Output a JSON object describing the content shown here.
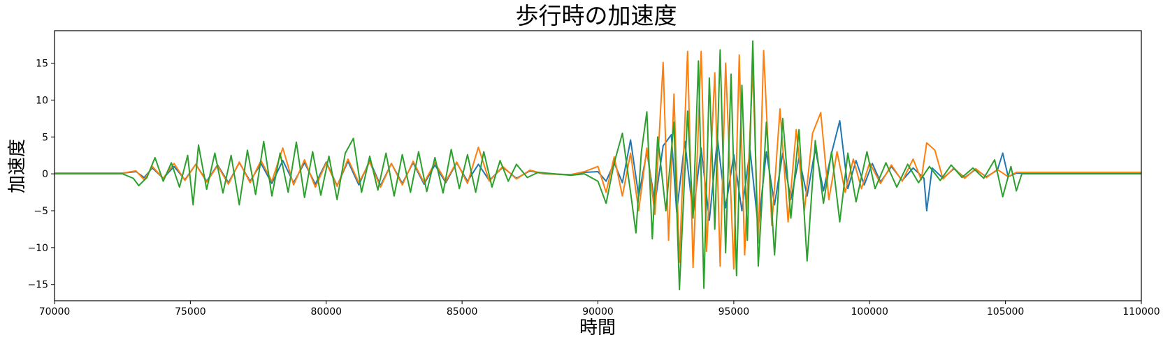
{
  "chart_data": {
    "type": "line",
    "title": "歩行時の加速度",
    "xlabel": "時間",
    "ylabel": "加速度",
    "xlim": [
      70000,
      110000
    ],
    "ylim": [
      -17.2,
      19.4
    ],
    "xticks": [
      70000,
      75000,
      80000,
      85000,
      90000,
      95000,
      100000,
      105000,
      110000
    ],
    "yticks": [
      -15,
      -10,
      -5,
      0,
      5,
      10,
      15
    ],
    "ytick_labels": [
      "−15",
      "−10",
      "−5",
      "0",
      "5",
      "10",
      "15"
    ],
    "grid": false,
    "legend": "none",
    "series": [
      {
        "color": "#1f77b4",
        "points": [
          [
            70000,
            0.1
          ],
          [
            72500,
            0.1
          ],
          [
            73000,
            0.3
          ],
          [
            73300,
            -0.5
          ],
          [
            73600,
            0.8
          ],
          [
            74000,
            -0.6
          ],
          [
            74400,
            1.0
          ],
          [
            74800,
            -0.8
          ],
          [
            75200,
            1.3
          ],
          [
            75600,
            -1.0
          ],
          [
            76000,
            1.2
          ],
          [
            76400,
            -1.2
          ],
          [
            76800,
            1.5
          ],
          [
            77200,
            -1.0
          ],
          [
            77600,
            1.4
          ],
          [
            78000,
            -1.3
          ],
          [
            78400,
            1.8
          ],
          [
            78800,
            -1.2
          ],
          [
            79200,
            1.5
          ],
          [
            79600,
            -1.4
          ],
          [
            80000,
            1.6
          ],
          [
            80400,
            -1.6
          ],
          [
            80800,
            1.7
          ],
          [
            81200,
            -1.5
          ],
          [
            81600,
            1.8
          ],
          [
            82000,
            -1.6
          ],
          [
            82400,
            1.4
          ],
          [
            82800,
            -1.3
          ],
          [
            83200,
            1.5
          ],
          [
            83600,
            -1.4
          ],
          [
            84000,
            1.2
          ],
          [
            84400,
            -1.2
          ],
          [
            84800,
            1.5
          ],
          [
            85200,
            -1.0
          ],
          [
            85600,
            1.3
          ],
          [
            86000,
            -0.9
          ],
          [
            86500,
            0.9
          ],
          [
            87000,
            -0.6
          ],
          [
            87500,
            0.4
          ],
          [
            88000,
            0.0
          ],
          [
            89000,
            -0.1
          ],
          [
            89500,
            0.2
          ],
          [
            90000,
            0.3
          ],
          [
            90300,
            -1.0
          ],
          [
            90600,
            1.5
          ],
          [
            90900,
            -1.2
          ],
          [
            91200,
            4.6
          ],
          [
            91500,
            -3.0
          ],
          [
            91800,
            3.0
          ],
          [
            92100,
            -4.0
          ],
          [
            92400,
            3.8
          ],
          [
            92700,
            5.3
          ],
          [
            92900,
            -5.2
          ],
          [
            93200,
            4.4
          ],
          [
            93500,
            -5.5
          ],
          [
            93800,
            3.5
          ],
          [
            94100,
            -6.3
          ],
          [
            94400,
            4.8
          ],
          [
            94700,
            -4.6
          ],
          [
            95000,
            2.6
          ],
          [
            95300,
            -5.0
          ],
          [
            95600,
            3.2
          ],
          [
            95900,
            -7.3
          ],
          [
            96200,
            3.0
          ],
          [
            96500,
            -4.2
          ],
          [
            96800,
            2.8
          ],
          [
            97100,
            -3.5
          ],
          [
            97400,
            2.2
          ],
          [
            97700,
            -3.0
          ],
          [
            98000,
            3.4
          ],
          [
            98300,
            -2.3
          ],
          [
            98600,
            2.8
          ],
          [
            98900,
            7.2
          ],
          [
            99200,
            -2.0
          ],
          [
            99500,
            1.8
          ],
          [
            99800,
            -1.5
          ],
          [
            100100,
            1.4
          ],
          [
            100400,
            -1.1
          ],
          [
            100800,
            1.0
          ],
          [
            101200,
            -0.9
          ],
          [
            101600,
            0.8
          ],
          [
            102000,
            -0.6
          ],
          [
            102100,
            -5.0
          ],
          [
            102300,
            0.8
          ],
          [
            102700,
            -0.6
          ],
          [
            103100,
            0.7
          ],
          [
            103500,
            -0.5
          ],
          [
            103900,
            0.6
          ],
          [
            104300,
            -0.4
          ],
          [
            104700,
            0.5
          ],
          [
            104900,
            2.8
          ],
          [
            105100,
            -0.4
          ],
          [
            105400,
            0.1
          ],
          [
            110000,
            0.1
          ]
        ]
      },
      {
        "color": "#ff7f0e",
        "points": [
          [
            70000,
            0.1
          ],
          [
            72500,
            0.1
          ],
          [
            73000,
            0.4
          ],
          [
            73300,
            -0.8
          ],
          [
            73600,
            1.0
          ],
          [
            74000,
            -0.6
          ],
          [
            74400,
            1.4
          ],
          [
            74800,
            -0.9
          ],
          [
            75200,
            1.3
          ],
          [
            75600,
            -1.1
          ],
          [
            76000,
            1.1
          ],
          [
            76400,
            -1.4
          ],
          [
            76800,
            1.6
          ],
          [
            77200,
            -1.2
          ],
          [
            77600,
            1.8
          ],
          [
            78000,
            -1.0
          ],
          [
            78400,
            3.5
          ],
          [
            78800,
            -1.5
          ],
          [
            79200,
            1.9
          ],
          [
            79600,
            -1.8
          ],
          [
            80000,
            1.5
          ],
          [
            80400,
            -1.7
          ],
          [
            80800,
            2.0
          ],
          [
            81200,
            -1.2
          ],
          [
            81600,
            1.6
          ],
          [
            82000,
            -1.8
          ],
          [
            82400,
            1.4
          ],
          [
            82800,
            -1.5
          ],
          [
            83200,
            1.7
          ],
          [
            83600,
            -1.2
          ],
          [
            84000,
            1.5
          ],
          [
            84400,
            -1.0
          ],
          [
            84800,
            1.6
          ],
          [
            85200,
            -1.3
          ],
          [
            85600,
            3.6
          ],
          [
            86000,
            -1.0
          ],
          [
            86500,
            1.0
          ],
          [
            87000,
            -0.7
          ],
          [
            87500,
            0.5
          ],
          [
            88000,
            0.0
          ],
          [
            89000,
            -0.1
          ],
          [
            89500,
            0.3
          ],
          [
            90000,
            1.0
          ],
          [
            90300,
            -2.5
          ],
          [
            90600,
            2.3
          ],
          [
            90900,
            -3.0
          ],
          [
            91200,
            2.8
          ],
          [
            91500,
            -5.0
          ],
          [
            91800,
            3.5
          ],
          [
            92100,
            -5.5
          ],
          [
            92400,
            15.1
          ],
          [
            92600,
            -9.0
          ],
          [
            92800,
            10.8
          ],
          [
            93000,
            -12.0
          ],
          [
            93300,
            16.6
          ],
          [
            93500,
            -12.7
          ],
          [
            93800,
            16.6
          ],
          [
            94000,
            -10.5
          ],
          [
            94300,
            13.7
          ],
          [
            94500,
            -12.5
          ],
          [
            94700,
            15.0
          ],
          [
            95000,
            -12.9
          ],
          [
            95200,
            16.1
          ],
          [
            95400,
            -11.0
          ],
          [
            95700,
            14.3
          ],
          [
            95900,
            -9.4
          ],
          [
            96100,
            16.7
          ],
          [
            96400,
            -7.0
          ],
          [
            96700,
            8.8
          ],
          [
            97000,
            -6.5
          ],
          [
            97300,
            6.0
          ],
          [
            97600,
            -5.0
          ],
          [
            97900,
            5.5
          ],
          [
            98200,
            8.3
          ],
          [
            98500,
            -3.5
          ],
          [
            98800,
            3.0
          ],
          [
            99100,
            -2.5
          ],
          [
            99400,
            2.0
          ],
          [
            99700,
            -2.0
          ],
          [
            100000,
            1.5
          ],
          [
            100400,
            -1.3
          ],
          [
            100800,
            1.2
          ],
          [
            101200,
            -1.0
          ],
          [
            101600,
            2.0
          ],
          [
            101900,
            -0.8
          ],
          [
            102100,
            4.2
          ],
          [
            102400,
            3.2
          ],
          [
            102700,
            -0.7
          ],
          [
            103100,
            0.8
          ],
          [
            103500,
            -0.6
          ],
          [
            103900,
            0.7
          ],
          [
            104300,
            -0.5
          ],
          [
            104700,
            0.6
          ],
          [
            105100,
            -0.4
          ],
          [
            105400,
            0.2
          ],
          [
            110000,
            0.2
          ]
        ]
      },
      {
        "color": "#2ca02c",
        "points": [
          [
            70000,
            0.0
          ],
          [
            72500,
            0.0
          ],
          [
            72900,
            -0.6
          ],
          [
            73100,
            -1.6
          ],
          [
            73400,
            -0.5
          ],
          [
            73700,
            2.2
          ],
          [
            74000,
            -1.0
          ],
          [
            74300,
            1.5
          ],
          [
            74600,
            -1.8
          ],
          [
            74900,
            2.5
          ],
          [
            75100,
            -4.2
          ],
          [
            75300,
            3.9
          ],
          [
            75600,
            -2.1
          ],
          [
            75900,
            2.8
          ],
          [
            76200,
            -2.6
          ],
          [
            76500,
            2.5
          ],
          [
            76800,
            -4.2
          ],
          [
            77100,
            3.2
          ],
          [
            77400,
            -2.8
          ],
          [
            77700,
            4.4
          ],
          [
            78000,
            -3.0
          ],
          [
            78300,
            2.8
          ],
          [
            78600,
            -2.5
          ],
          [
            78900,
            4.3
          ],
          [
            79200,
            -3.2
          ],
          [
            79500,
            3.0
          ],
          [
            79800,
            -2.9
          ],
          [
            80100,
            2.4
          ],
          [
            80400,
            -3.5
          ],
          [
            80700,
            2.8
          ],
          [
            81000,
            4.8
          ],
          [
            81300,
            -2.5
          ],
          [
            81600,
            2.4
          ],
          [
            81900,
            -2.2
          ],
          [
            82200,
            2.8
          ],
          [
            82500,
            -3.0
          ],
          [
            82800,
            2.6
          ],
          [
            83100,
            -2.5
          ],
          [
            83400,
            3.0
          ],
          [
            83700,
            -2.4
          ],
          [
            84000,
            2.2
          ],
          [
            84300,
            -2.6
          ],
          [
            84600,
            3.3
          ],
          [
            84900,
            -2.0
          ],
          [
            85200,
            2.6
          ],
          [
            85500,
            -2.5
          ],
          [
            85800,
            3.0
          ],
          [
            86100,
            -1.8
          ],
          [
            86400,
            1.8
          ],
          [
            86700,
            -1.0
          ],
          [
            87000,
            1.3
          ],
          [
            87400,
            -0.5
          ],
          [
            87800,
            0.2
          ],
          [
            89000,
            -0.2
          ],
          [
            89500,
            0.0
          ],
          [
            90000,
            -1.0
          ],
          [
            90300,
            -4.0
          ],
          [
            90600,
            1.5
          ],
          [
            90900,
            5.5
          ],
          [
            91200,
            -2.5
          ],
          [
            91400,
            -8.0
          ],
          [
            91600,
            3.0
          ],
          [
            91800,
            8.4
          ],
          [
            92000,
            -8.8
          ],
          [
            92200,
            5.0
          ],
          [
            92500,
            -5.0
          ],
          [
            92800,
            7.0
          ],
          [
            93000,
            -15.7
          ],
          [
            93300,
            8.5
          ],
          [
            93500,
            -6.0
          ],
          [
            93700,
            15.3
          ],
          [
            93900,
            -15.5
          ],
          [
            94100,
            13.0
          ],
          [
            94300,
            -7.5
          ],
          [
            94500,
            16.8
          ],
          [
            94700,
            -10.7
          ],
          [
            94900,
            13.5
          ],
          [
            95100,
            -13.8
          ],
          [
            95300,
            12.0
          ],
          [
            95500,
            -9.0
          ],
          [
            95700,
            18.0
          ],
          [
            95900,
            -12.5
          ],
          [
            96200,
            7.0
          ],
          [
            96500,
            -11.0
          ],
          [
            96800,
            7.5
          ],
          [
            97100,
            -6.0
          ],
          [
            97400,
            6.0
          ],
          [
            97700,
            -11.8
          ],
          [
            98000,
            4.5
          ],
          [
            98300,
            -4.0
          ],
          [
            98600,
            3.0
          ],
          [
            98900,
            -6.5
          ],
          [
            99200,
            2.8
          ],
          [
            99500,
            -3.8
          ],
          [
            99900,
            3.0
          ],
          [
            100200,
            -2.0
          ],
          [
            100600,
            1.5
          ],
          [
            101000,
            -1.8
          ],
          [
            101400,
            1.3
          ],
          [
            101800,
            -1.2
          ],
          [
            102200,
            1.0
          ],
          [
            102600,
            -0.9
          ],
          [
            103000,
            1.2
          ],
          [
            103400,
            -0.5
          ],
          [
            103800,
            0.8
          ],
          [
            104200,
            -0.6
          ],
          [
            104600,
            1.9
          ],
          [
            104900,
            -3.1
          ],
          [
            105200,
            1.0
          ],
          [
            105400,
            -2.3
          ],
          [
            105600,
            0.0
          ],
          [
            110000,
            0.0
          ]
        ]
      }
    ]
  }
}
